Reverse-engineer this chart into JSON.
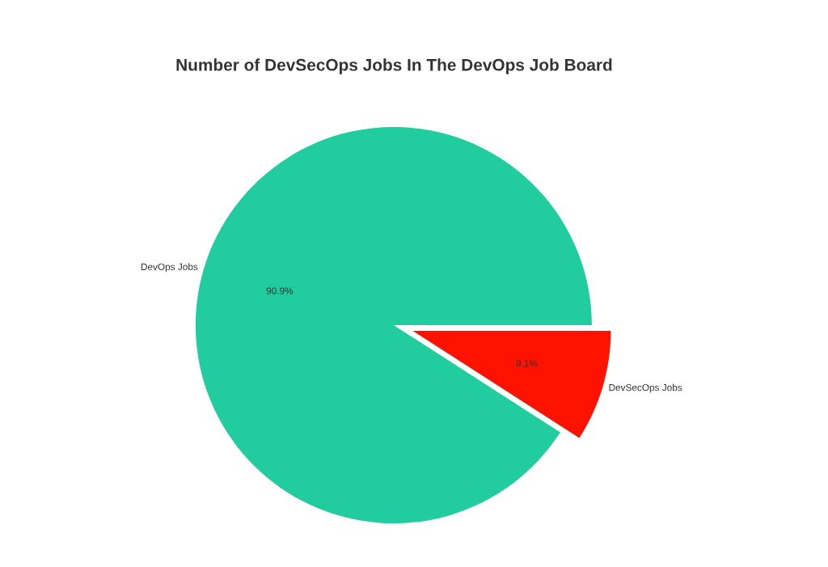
{
  "chart_data": {
    "type": "pie",
    "title": "Number of DevSecOps Jobs In The DevOps Job Board",
    "categories": [
      "DevOps Jobs",
      "DevSecOps Jobs"
    ],
    "values": [
      90.9,
      9.1
    ],
    "colors": [
      "#21cc9e",
      "#ff1200"
    ],
    "value_labels": [
      "90.9%",
      "9.1%"
    ],
    "legend": false
  }
}
